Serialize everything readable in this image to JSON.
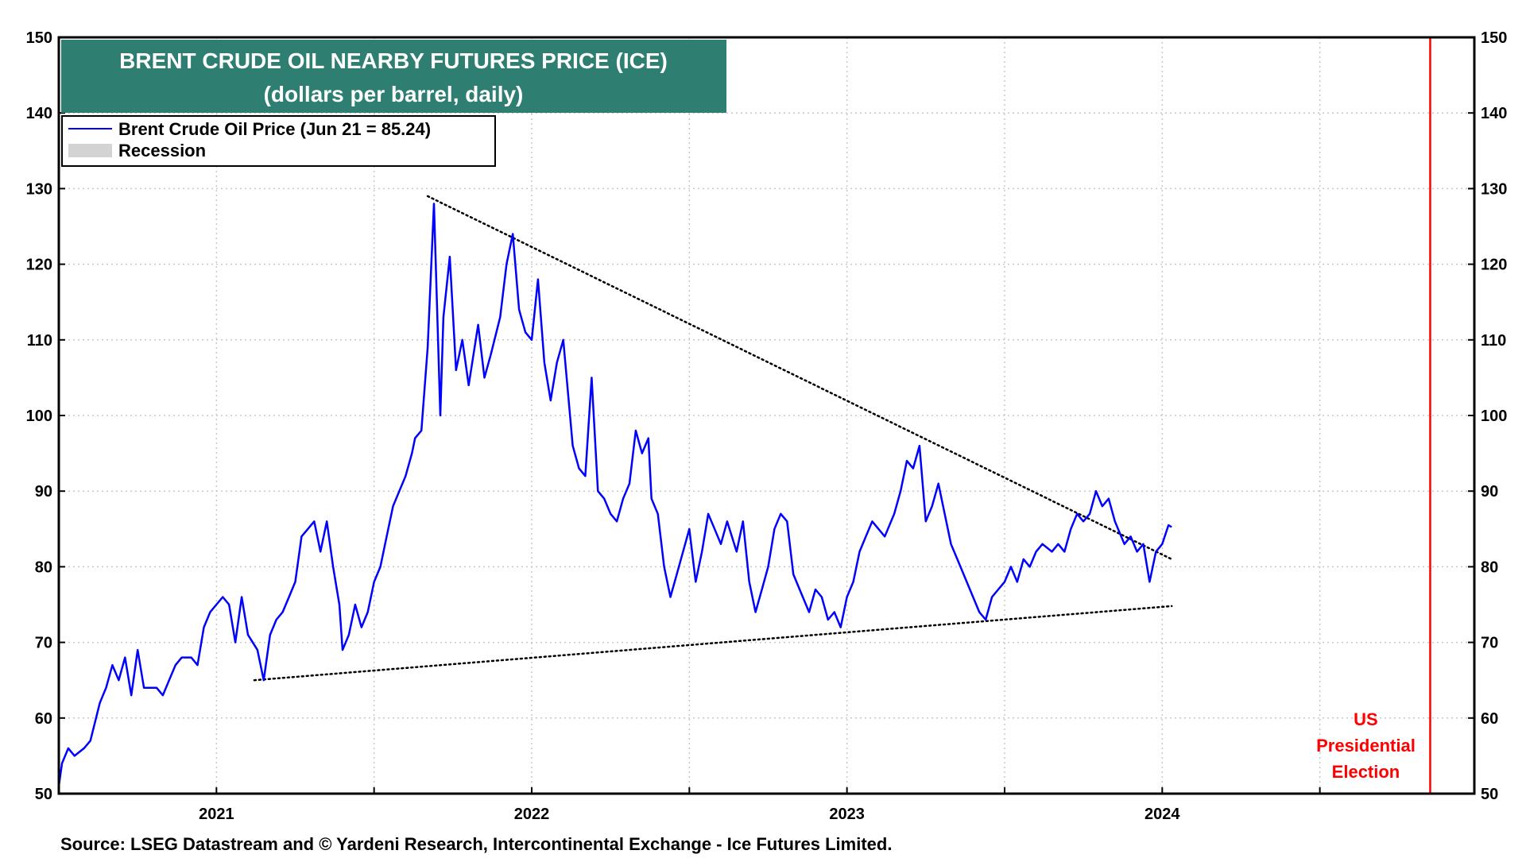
{
  "chart_data": {
    "type": "line",
    "title": "BRENT CRUDE OIL NEARBY FUTURES  PRICE (ICE)",
    "subtitle": "(dollars per barrel, daily)",
    "ylim": [
      50,
      150
    ],
    "yticks": [
      50,
      60,
      70,
      80,
      90,
      100,
      110,
      120,
      130,
      140,
      150
    ],
    "xlim": [
      2020.5,
      2024.99
    ],
    "xticks": [
      {
        "x": 2021.0,
        "label": "2021"
      },
      {
        "x": 2022.0,
        "label": "2022"
      },
      {
        "x": 2023.0,
        "label": "2023"
      },
      {
        "x": 2024.0,
        "label": "2024"
      }
    ],
    "grid": true,
    "legend_position": "top-left",
    "legend": [
      {
        "label": "Brent Crude Oil Price (Jun 21 = 85.24)",
        "color": "#0000ff",
        "kind": "line"
      },
      {
        "label": "Recession",
        "color": "#d3d3d3",
        "kind": "box"
      }
    ],
    "series": [
      {
        "name": "Brent Crude Oil Price (Jun 21 = 85.24)",
        "color": "#0000ff",
        "points": [
          [
            2020.5,
            51
          ],
          [
            2020.51,
            54
          ],
          [
            2020.53,
            56
          ],
          [
            2020.55,
            55
          ],
          [
            2020.58,
            56
          ],
          [
            2020.6,
            57
          ],
          [
            2020.63,
            62
          ],
          [
            2020.65,
            64
          ],
          [
            2020.67,
            67
          ],
          [
            2020.69,
            65
          ],
          [
            2020.71,
            68
          ],
          [
            2020.73,
            63
          ],
          [
            2020.75,
            69
          ],
          [
            2020.77,
            64
          ],
          [
            2020.79,
            64
          ],
          [
            2020.81,
            64
          ],
          [
            2020.83,
            63
          ],
          [
            2020.85,
            65
          ],
          [
            2020.87,
            67
          ],
          [
            2020.89,
            68
          ],
          [
            2020.92,
            68
          ],
          [
            2020.94,
            67
          ],
          [
            2020.96,
            72
          ],
          [
            2020.98,
            74
          ],
          [
            2021.0,
            75
          ],
          [
            2021.02,
            76
          ],
          [
            2021.04,
            75
          ],
          [
            2021.06,
            70
          ],
          [
            2021.08,
            76
          ],
          [
            2021.1,
            71
          ],
          [
            2021.13,
            69
          ],
          [
            2021.15,
            65
          ],
          [
            2021.17,
            71
          ],
          [
            2021.19,
            73
          ],
          [
            2021.21,
            74
          ],
          [
            2021.23,
            76
          ],
          [
            2021.25,
            78
          ],
          [
            2021.27,
            84
          ],
          [
            2021.29,
            85
          ],
          [
            2021.31,
            86
          ],
          [
            2021.33,
            82
          ],
          [
            2021.35,
            86
          ],
          [
            2021.37,
            80
          ],
          [
            2021.39,
            75
          ],
          [
            2021.4,
            69
          ],
          [
            2021.42,
            71
          ],
          [
            2021.44,
            75
          ],
          [
            2021.46,
            72
          ],
          [
            2021.48,
            74
          ],
          [
            2021.5,
            78
          ],
          [
            2021.52,
            80
          ],
          [
            2021.54,
            84
          ],
          [
            2021.56,
            88
          ],
          [
            2021.58,
            90
          ],
          [
            2021.6,
            92
          ],
          [
            2021.62,
            95
          ],
          [
            2021.63,
            97
          ],
          [
            2021.65,
            98
          ],
          [
            2021.67,
            109
          ],
          [
            2021.69,
            128
          ],
          [
            2021.71,
            100
          ],
          [
            2021.72,
            113
          ],
          [
            2021.74,
            121
          ],
          [
            2021.76,
            106
          ],
          [
            2021.78,
            110
          ],
          [
            2021.8,
            104
          ],
          [
            2021.83,
            112
          ],
          [
            2021.85,
            105
          ],
          [
            2021.87,
            108
          ],
          [
            2021.9,
            113
          ],
          [
            2021.92,
            120
          ],
          [
            2021.94,
            124
          ],
          [
            2021.96,
            114
          ],
          [
            2021.98,
            111
          ],
          [
            2022.0,
            110
          ],
          [
            2022.02,
            118
          ],
          [
            2022.04,
            107
          ],
          [
            2022.06,
            102
          ],
          [
            2022.08,
            107
          ],
          [
            2022.1,
            110
          ],
          [
            2022.13,
            96
          ],
          [
            2022.15,
            93
          ],
          [
            2022.17,
            92
          ],
          [
            2022.19,
            105
          ],
          [
            2022.21,
            90
          ],
          [
            2022.23,
            89
          ],
          [
            2022.25,
            87
          ],
          [
            2022.27,
            86
          ],
          [
            2022.29,
            89
          ],
          [
            2022.31,
            91
          ],
          [
            2022.33,
            98
          ],
          [
            2022.35,
            95
          ],
          [
            2022.37,
            97
          ],
          [
            2022.38,
            89
          ],
          [
            2022.4,
            87
          ],
          [
            2022.42,
            80
          ],
          [
            2022.44,
            76
          ],
          [
            2022.46,
            79
          ],
          [
            2022.48,
            82
          ],
          [
            2022.5,
            85
          ],
          [
            2022.52,
            78
          ],
          [
            2022.54,
            82
          ],
          [
            2022.56,
            87
          ],
          [
            2022.58,
            85
          ],
          [
            2022.6,
            83
          ],
          [
            2022.62,
            86
          ],
          [
            2022.65,
            82
          ],
          [
            2022.67,
            86
          ],
          [
            2022.69,
            78
          ],
          [
            2022.71,
            74
          ],
          [
            2022.73,
            77
          ],
          [
            2022.75,
            80
          ],
          [
            2022.77,
            85
          ],
          [
            2022.79,
            87
          ],
          [
            2022.81,
            86
          ],
          [
            2022.83,
            79
          ],
          [
            2022.85,
            77
          ],
          [
            2022.88,
            74
          ],
          [
            2022.9,
            77
          ],
          [
            2022.92,
            76
          ],
          [
            2022.94,
            73
          ],
          [
            2022.96,
            74
          ],
          [
            2022.98,
            72
          ],
          [
            2023.0,
            76
          ],
          [
            2023.02,
            78
          ],
          [
            2023.04,
            82
          ],
          [
            2023.06,
            84
          ],
          [
            2023.08,
            86
          ],
          [
            2023.1,
            85
          ],
          [
            2023.12,
            84
          ],
          [
            2023.15,
            87
          ],
          [
            2023.17,
            90
          ],
          [
            2023.19,
            94
          ],
          [
            2023.21,
            93
          ],
          [
            2023.23,
            96
          ],
          [
            2023.25,
            86
          ],
          [
            2023.27,
            88
          ],
          [
            2023.29,
            91
          ],
          [
            2023.31,
            87
          ],
          [
            2023.33,
            83
          ],
          [
            2023.35,
            81
          ],
          [
            2023.37,
            79
          ],
          [
            2023.4,
            76
          ],
          [
            2023.42,
            74
          ],
          [
            2023.44,
            73
          ],
          [
            2023.46,
            76
          ],
          [
            2023.48,
            77
          ],
          [
            2023.5,
            78
          ],
          [
            2023.52,
            80
          ],
          [
            2023.54,
            78
          ],
          [
            2023.56,
            81
          ],
          [
            2023.58,
            80
          ],
          [
            2023.6,
            82
          ],
          [
            2023.62,
            83
          ],
          [
            2023.65,
            82
          ],
          [
            2023.67,
            83
          ],
          [
            2023.69,
            82
          ],
          [
            2023.71,
            85
          ],
          [
            2023.73,
            87
          ],
          [
            2023.75,
            86
          ],
          [
            2023.77,
            87
          ],
          [
            2023.79,
            90
          ],
          [
            2023.81,
            88
          ],
          [
            2023.83,
            89
          ],
          [
            2023.85,
            86
          ],
          [
            2023.87,
            84
          ],
          [
            2023.88,
            83
          ],
          [
            2023.9,
            84
          ],
          [
            2023.92,
            82
          ],
          [
            2023.94,
            83
          ],
          [
            2023.96,
            78
          ],
          [
            2023.98,
            82
          ],
          [
            2024.0,
            83
          ],
          [
            2024.02,
            85.5
          ],
          [
            2024.03,
            85.24
          ]
        ]
      }
    ],
    "trendlines": [
      {
        "name": "upper",
        "style": "dotted",
        "points": [
          [
            2021.67,
            129
          ],
          [
            2024.03,
            81
          ]
        ]
      },
      {
        "name": "lower",
        "style": "dotted",
        "points": [
          [
            2021.12,
            65
          ],
          [
            2024.03,
            74.8
          ]
        ]
      }
    ],
    "markers": [
      {
        "name": "US Presidential Election",
        "x": 2024.85,
        "color": "#ff0000",
        "label_lines": [
          "US",
          "Presidential",
          "Election"
        ]
      }
    ],
    "source": "Source: LSEG Datastream and © Yardeni Research, Intercontinental Exchange - Ice Futures Limited.",
    "colors": {
      "title_bg": "#2e7f72",
      "series": "#0000ff",
      "marker": "#ff0000",
      "recession": "#d3d3d3"
    }
  }
}
